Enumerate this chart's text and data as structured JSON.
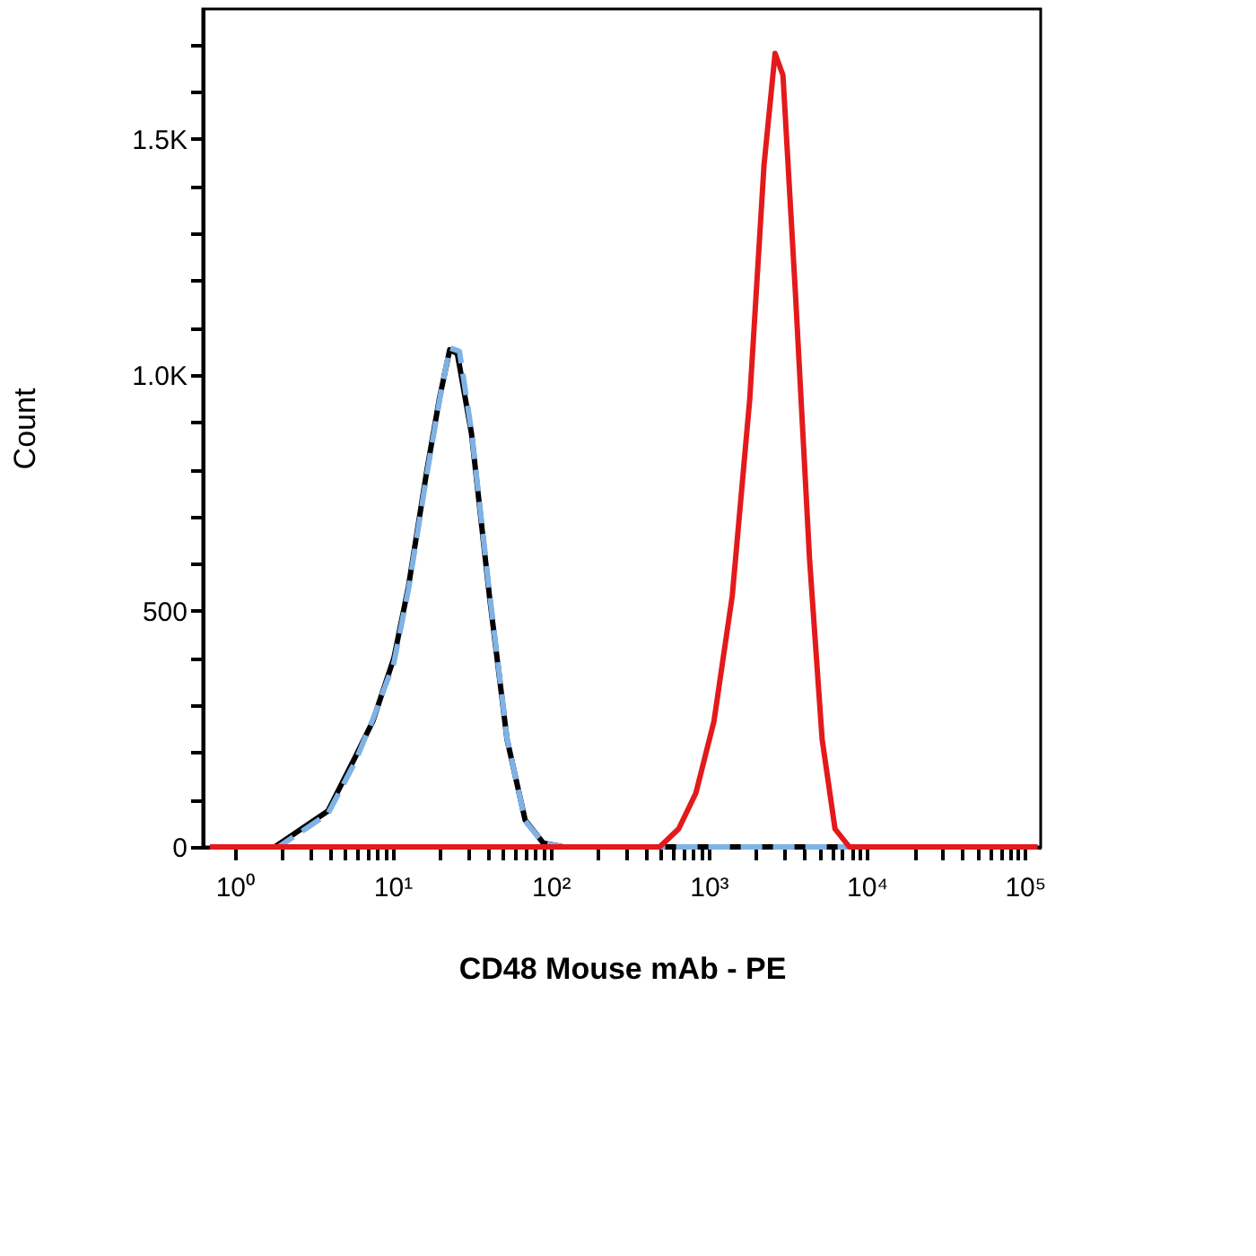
{
  "chart_data": {
    "type": "line",
    "xlabel": "CD48 Mouse mAb - PE",
    "ylabel": "Count",
    "log": "x",
    "grid": false,
    "marker": "none",
    "xlim": [
      0.63,
      126000
    ],
    "ylim": [
      0,
      1775
    ],
    "xticks": [
      {
        "value": 1,
        "label": "10⁰"
      },
      {
        "value": 2,
        "label": null
      },
      {
        "value": 3,
        "label": null
      },
      {
        "value": 4,
        "label": null
      },
      {
        "value": 5,
        "label": null
      },
      {
        "value": 6,
        "label": null
      },
      {
        "value": 7,
        "label": null
      },
      {
        "value": 8,
        "label": null
      },
      {
        "value": 9,
        "label": null
      },
      {
        "value": 10,
        "label": "10¹"
      },
      {
        "value": 20,
        "label": null
      },
      {
        "value": 30,
        "label": null
      },
      {
        "value": 40,
        "label": null
      },
      {
        "value": 50,
        "label": null
      },
      {
        "value": 60,
        "label": null
      },
      {
        "value": 70,
        "label": null
      },
      {
        "value": 80,
        "label": null
      },
      {
        "value": 90,
        "label": null
      },
      {
        "value": 100,
        "label": "10²"
      },
      {
        "value": 200,
        "label": null
      },
      {
        "value": 300,
        "label": null
      },
      {
        "value": 400,
        "label": null
      },
      {
        "value": 500,
        "label": null
      },
      {
        "value": 600,
        "label": null
      },
      {
        "value": 700,
        "label": null
      },
      {
        "value": 800,
        "label": null
      },
      {
        "value": 900,
        "label": null
      },
      {
        "value": 1000,
        "label": "10³"
      },
      {
        "value": 2000,
        "label": null
      },
      {
        "value": 3000,
        "label": null
      },
      {
        "value": 4000,
        "label": null
      },
      {
        "value": 5000,
        "label": null
      },
      {
        "value": 6000,
        "label": null
      },
      {
        "value": 7000,
        "label": null
      },
      {
        "value": 8000,
        "label": null
      },
      {
        "value": 9000,
        "label": null
      },
      {
        "value": 10000,
        "label": "10⁴"
      },
      {
        "value": 20000,
        "label": null
      },
      {
        "value": 30000,
        "label": null
      },
      {
        "value": 40000,
        "label": null
      },
      {
        "value": 50000,
        "label": null
      },
      {
        "value": 60000,
        "label": null
      },
      {
        "value": 70000,
        "label": null
      },
      {
        "value": 80000,
        "label": null
      },
      {
        "value": 90000,
        "label": null
      },
      {
        "value": 100000,
        "label": "10⁵"
      }
    ],
    "yticks": [
      0,
      {
        "value": 100,
        "label": null
      },
      {
        "value": 200,
        "label": null
      },
      {
        "value": 300,
        "label": null
      },
      {
        "value": 400,
        "label": null
      },
      500,
      {
        "value": 600,
        "label": null
      },
      {
        "value": 700,
        "label": null
      },
      {
        "value": 800,
        "label": null
      },
      {
        "value": 900,
        "label": null
      },
      {
        "value": 1000,
        "label": "1.0K"
      },
      {
        "value": 1100,
        "label": null
      },
      {
        "value": 1200,
        "label": null
      },
      {
        "value": 1300,
        "label": null
      },
      {
        "value": 1400,
        "label": null
      },
      {
        "value": 1500,
        "label": "1.5K"
      },
      {
        "value": 1600,
        "label": null
      },
      {
        "value": 1700,
        "label": null
      }
    ],
    "series": [
      {
        "color": "#000000",
        "line_style": "solid",
        "x": [
          0.7,
          1.8,
          3.9,
          5.8,
          7.5,
          10.2,
          12.6,
          16.5,
          19.8,
          23,
          25.7,
          31.6,
          41,
          53,
          69,
          90,
          120,
          120000
        ],
        "values": [
          0,
          0,
          76,
          190,
          266,
          400,
          551,
          798,
          950,
          1053,
          1045,
          875,
          532,
          228,
          57,
          8,
          0,
          0
        ]
      },
      {
        "color": "#7fb2e5",
        "line_style": "dashed",
        "x": [
          0.7,
          1.9,
          3.9,
          5.8,
          7.5,
          10.2,
          12.6,
          16.5,
          19.8,
          23,
          26.5,
          31.6,
          41,
          53,
          69,
          90,
          120,
          120000
        ],
        "values": [
          0,
          0,
          70,
          180,
          270,
          390,
          545,
          790,
          945,
          1057,
          1050,
          880,
          540,
          230,
          55,
          8,
          0,
          0
        ]
      },
      {
        "color": "#e31a1c",
        "line_style": "solid",
        "x": [
          0.7,
          490,
          645,
          830,
          1080,
          1410,
          1820,
          2240,
          2630,
          2950,
          3530,
          4350,
          5220,
          6300,
          7760,
          120000
        ],
        "values": [
          0,
          0,
          38,
          114,
          266,
          532,
          950,
          1445,
          1681,
          1635,
          1179,
          608,
          228,
          38,
          0,
          0
        ]
      }
    ]
  }
}
